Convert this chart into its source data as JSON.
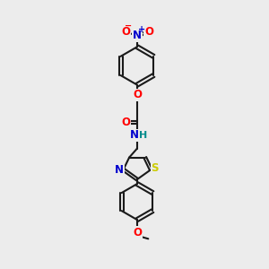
{
  "bg_color": "#ececec",
  "bond_color": "#1a1a1a",
  "atom_colors": {
    "O": "#ff0000",
    "N": "#0000cd",
    "S": "#cccc00",
    "H": "#008b8b",
    "C": "#1a1a1a"
  },
  "figsize": [
    3.0,
    3.0
  ],
  "dpi": 100,
  "xlim": [
    0,
    10
  ],
  "ylim": [
    0,
    10
  ]
}
